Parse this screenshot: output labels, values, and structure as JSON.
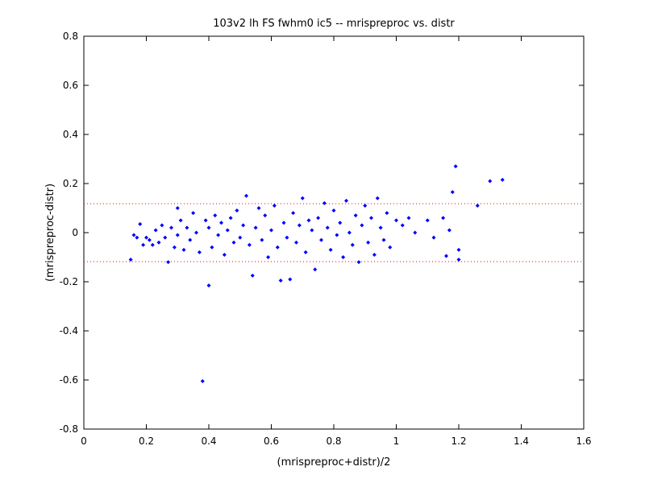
{
  "chart_data": {
    "type": "scatter",
    "title": "103v2 lh FS fwhm0 ic5 -- mrispreproc vs. distr",
    "xlabel": "(mrispreproc+distr)/2",
    "ylabel": "(mrispreproc-distr)",
    "xlim": [
      0,
      1.6
    ],
    "ylim": [
      -0.8,
      0.8
    ],
    "xticks": [
      "0",
      "0.2",
      "0.4",
      "0.6",
      "0.8",
      "1",
      "1.2",
      "1.4",
      "1.6"
    ],
    "yticks": [
      "0.8",
      "0.6",
      "0.4",
      "0.2",
      "0",
      "-0.2",
      "-0.4",
      "-0.6",
      "-0.8"
    ],
    "grid": false,
    "marker_color": "#0000ff",
    "reference_line_color": "#ff0000",
    "reference_lines_y": [
      0.118,
      -0.118
    ],
    "series": [
      {
        "points": [
          [
            0.15,
            -0.11
          ],
          [
            0.16,
            -0.01
          ],
          [
            0.17,
            -0.02
          ],
          [
            0.18,
            0.035
          ],
          [
            0.19,
            -0.05
          ],
          [
            0.2,
            -0.02
          ],
          [
            0.21,
            -0.03
          ],
          [
            0.22,
            -0.05
          ],
          [
            0.23,
            0.01
          ],
          [
            0.24,
            -0.04
          ],
          [
            0.25,
            0.03
          ],
          [
            0.26,
            -0.02
          ],
          [
            0.27,
            -0.12
          ],
          [
            0.28,
            0.02
          ],
          [
            0.29,
            -0.06
          ],
          [
            0.3,
            0.1
          ],
          [
            0.3,
            -0.01
          ],
          [
            0.31,
            0.05
          ],
          [
            0.32,
            -0.07
          ],
          [
            0.33,
            0.02
          ],
          [
            0.34,
            -0.03
          ],
          [
            0.35,
            0.08
          ],
          [
            0.36,
            0.0
          ],
          [
            0.37,
            -0.08
          ],
          [
            0.38,
            -0.605
          ],
          [
            0.39,
            0.05
          ],
          [
            0.4,
            -0.215
          ],
          [
            0.4,
            0.02
          ],
          [
            0.41,
            -0.06
          ],
          [
            0.42,
            0.07
          ],
          [
            0.43,
            -0.01
          ],
          [
            0.44,
            0.04
          ],
          [
            0.45,
            -0.09
          ],
          [
            0.46,
            0.01
          ],
          [
            0.47,
            0.06
          ],
          [
            0.48,
            -0.04
          ],
          [
            0.49,
            0.09
          ],
          [
            0.5,
            -0.02
          ],
          [
            0.51,
            0.03
          ],
          [
            0.52,
            0.15
          ],
          [
            0.53,
            -0.05
          ],
          [
            0.54,
            -0.175
          ],
          [
            0.55,
            0.02
          ],
          [
            0.56,
            0.1
          ],
          [
            0.57,
            -0.03
          ],
          [
            0.58,
            0.07
          ],
          [
            0.59,
            -0.1
          ],
          [
            0.6,
            0.01
          ],
          [
            0.61,
            0.11
          ],
          [
            0.62,
            -0.06
          ],
          [
            0.63,
            -0.195
          ],
          [
            0.64,
            0.04
          ],
          [
            0.65,
            -0.02
          ],
          [
            0.66,
            -0.19
          ],
          [
            0.67,
            0.08
          ],
          [
            0.68,
            -0.04
          ],
          [
            0.69,
            0.03
          ],
          [
            0.7,
            0.14
          ],
          [
            0.71,
            -0.08
          ],
          [
            0.72,
            0.05
          ],
          [
            0.73,
            0.01
          ],
          [
            0.74,
            -0.15
          ],
          [
            0.75,
            0.06
          ],
          [
            0.76,
            -0.03
          ],
          [
            0.77,
            0.12
          ],
          [
            0.78,
            0.02
          ],
          [
            0.79,
            -0.07
          ],
          [
            0.8,
            0.09
          ],
          [
            0.81,
            -0.01
          ],
          [
            0.82,
            0.04
          ],
          [
            0.83,
            -0.1
          ],
          [
            0.84,
            0.13
          ],
          [
            0.85,
            0.0
          ],
          [
            0.86,
            -0.05
          ],
          [
            0.87,
            0.07
          ],
          [
            0.88,
            -0.12
          ],
          [
            0.89,
            0.03
          ],
          [
            0.9,
            0.11
          ],
          [
            0.91,
            -0.04
          ],
          [
            0.92,
            0.06
          ],
          [
            0.93,
            -0.09
          ],
          [
            0.94,
            0.14
          ],
          [
            0.95,
            0.02
          ],
          [
            0.96,
            -0.03
          ],
          [
            0.97,
            0.08
          ],
          [
            0.98,
            -0.06
          ],
          [
            1.0,
            0.05
          ],
          [
            1.02,
            0.03
          ],
          [
            1.04,
            0.06
          ],
          [
            1.06,
            0.0
          ],
          [
            1.1,
            0.05
          ],
          [
            1.12,
            -0.02
          ],
          [
            1.15,
            0.06
          ],
          [
            1.16,
            -0.095
          ],
          [
            1.17,
            0.01
          ],
          [
            1.18,
            0.165
          ],
          [
            1.19,
            0.27
          ],
          [
            1.2,
            -0.07
          ],
          [
            1.2,
            -0.11
          ],
          [
            1.26,
            0.11
          ],
          [
            1.3,
            0.21
          ],
          [
            1.34,
            0.215
          ]
        ]
      }
    ]
  }
}
